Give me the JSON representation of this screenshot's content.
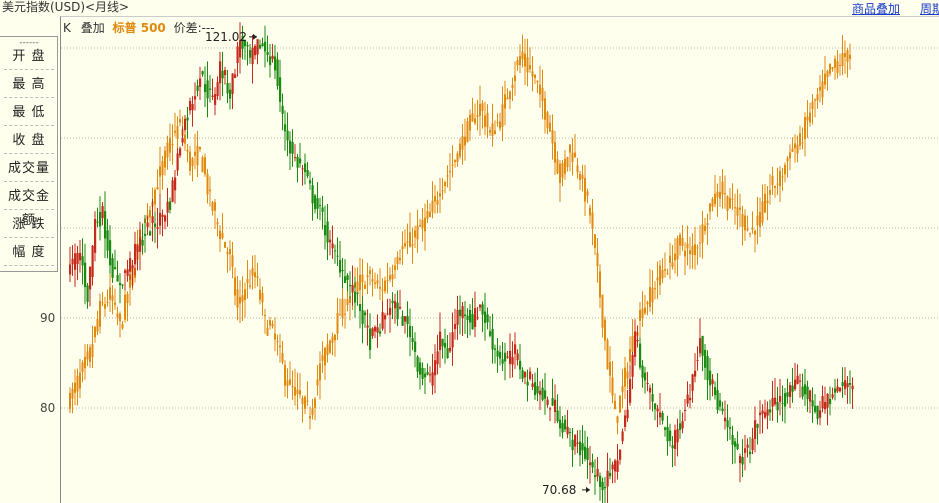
{
  "header": {
    "title": "美元指数(USD)<月线>",
    "overlay_link": "商品叠加",
    "period_link": "周期"
  },
  "subheader": {
    "k_label": "K",
    "overlay_label": "叠加",
    "overlay_index": "标普 500",
    "price_diff": "价差:---"
  },
  "side_panel": {
    "dashes": "------",
    "items": [
      "开 盘",
      "最 高",
      "最 低",
      "收 盘",
      "成交量",
      "成交金额",
      "涨 跌",
      "幅 度"
    ]
  },
  "colors": {
    "up": "#c42b1c",
    "down": "#1b8a12",
    "overlay": "#e08a12",
    "grid": "#b8b8a8",
    "background": "#ffffee"
  },
  "chart_data": {
    "type": "candlestick",
    "y_ticks": [
      80,
      90
    ],
    "y_range": [
      69,
      122
    ],
    "annotations": [
      {
        "label": "121.02",
        "value": 121.02
      },
      {
        "label": "70.68",
        "value": 70.68
      }
    ],
    "usd_index_series": {
      "name": "美元指数",
      "anchors_month_index_close": [
        [
          0,
          95.5
        ],
        [
          4,
          97.2
        ],
        [
          7,
          92.5
        ],
        [
          10,
          100.8
        ],
        [
          13,
          101.5
        ],
        [
          16,
          96.5
        ],
        [
          19,
          93.5
        ],
        [
          24,
          96.0
        ],
        [
          30,
          99.5
        ],
        [
          36,
          101.0
        ],
        [
          40,
          103.0
        ],
        [
          45,
          111.0
        ],
        [
          52,
          117.0
        ],
        [
          57,
          114.0
        ],
        [
          60,
          118.0
        ],
        [
          64,
          115.0
        ],
        [
          68,
          121.0
        ],
        [
          72,
          118.5
        ],
        [
          76,
          120.5
        ],
        [
          79,
          119.5
        ],
        [
          82,
          118.0
        ],
        [
          85,
          112.0
        ],
        [
          89,
          108.0
        ],
        [
          93,
          106.5
        ],
        [
          97,
          103.5
        ],
        [
          101,
          101.0
        ],
        [
          104,
          98.0
        ],
        [
          108,
          96.0
        ],
        [
          112,
          93.5
        ],
        [
          116,
          91.0
        ],
        [
          120,
          87.5
        ],
        [
          124,
          89.0
        ],
        [
          128,
          91.5
        ],
        [
          132,
          90.5
        ],
        [
          136,
          88.5
        ],
        [
          140,
          84.0
        ],
        [
          144,
          83.0
        ],
        [
          148,
          87.5
        ],
        [
          151,
          86.0
        ],
        [
          155,
          90.5
        ],
        [
          158,
          91.0
        ],
        [
          161,
          89.5
        ],
        [
          164,
          91.5
        ],
        [
          167,
          89.0
        ],
        [
          170,
          86.5
        ],
        [
          174,
          85.0
        ],
        [
          178,
          86.0
        ],
        [
          182,
          83.5
        ],
        [
          186,
          82.5
        ],
        [
          190,
          80.8
        ],
        [
          194,
          80.0
        ],
        [
          198,
          77.5
        ],
        [
          202,
          76.0
        ],
        [
          206,
          75.0
        ],
        [
          210,
          72.5
        ],
        [
          214,
          71.5
        ],
        [
          218,
          73.5
        ],
        [
          222,
          78.5
        ],
        [
          226,
          88.0
        ],
        [
          230,
          83.0
        ],
        [
          233,
          80.5
        ],
        [
          237,
          78.5
        ],
        [
          241,
          75.5
        ],
        [
          245,
          79.5
        ],
        [
          249,
          83.0
        ],
        [
          252,
          88.0
        ],
        [
          255,
          84.0
        ],
        [
          259,
          80.5
        ],
        [
          263,
          77.5
        ],
        [
          267,
          74.5
        ],
        [
          271,
          75.0
        ],
        [
          275,
          78.5
        ],
        [
          279,
          80.0
        ],
        [
          283,
          80.5
        ],
        [
          287,
          81.5
        ],
        [
          291,
          82.5
        ],
        [
          295,
          81.5
        ],
        [
          299,
          79.5
        ],
        [
          303,
          81.0
        ],
        [
          307,
          82.0
        ],
        [
          310,
          82.5
        ],
        [
          313,
          82.8
        ]
      ]
    },
    "sp500_overlay_series": {
      "name": "标普 500",
      "anchors_month_index_close": [
        [
          0,
          81.0
        ],
        [
          4,
          83.5
        ],
        [
          8,
          86.0
        ],
        [
          12,
          91.0
        ],
        [
          16,
          92.5
        ],
        [
          20,
          89.0
        ],
        [
          24,
          94.0
        ],
        [
          28,
          99.0
        ],
        [
          32,
          102.5
        ],
        [
          36,
          106.0
        ],
        [
          40,
          109.5
        ],
        [
          44,
          111.5
        ],
        [
          48,
          107.0
        ],
        [
          52,
          108.5
        ],
        [
          56,
          103.0
        ],
        [
          60,
          99.5
        ],
        [
          64,
          96.5
        ],
        [
          67,
          91.0
        ],
        [
          70,
          93.5
        ],
        [
          74,
          95.0
        ],
        [
          78,
          89.5
        ],
        [
          82,
          88.0
        ],
        [
          86,
          83.5
        ],
        [
          89,
          82.0
        ],
        [
          92,
          81.0
        ],
        [
          96,
          79.5
        ],
        [
          100,
          84.5
        ],
        [
          104,
          87.5
        ],
        [
          108,
          90.5
        ],
        [
          112,
          92.5
        ],
        [
          116,
          94.0
        ],
        [
          120,
          94.5
        ],
        [
          124,
          93.0
        ],
        [
          128,
          95.0
        ],
        [
          132,
          97.5
        ],
        [
          136,
          98.5
        ],
        [
          140,
          100.0
        ],
        [
          144,
          101.5
        ],
        [
          148,
          104.5
        ],
        [
          152,
          106.5
        ],
        [
          156,
          109.0
        ],
        [
          160,
          111.5
        ],
        [
          164,
          113.5
        ],
        [
          168,
          110.5
        ],
        [
          172,
          112.0
        ],
        [
          176,
          116.0
        ],
        [
          180,
          119.0
        ],
        [
          184,
          117.5
        ],
        [
          188,
          115.0
        ],
        [
          192,
          111.0
        ],
        [
          196,
          105.5
        ],
        [
          200,
          109.0
        ],
        [
          204,
          106.0
        ],
        [
          208,
          101.5
        ],
        [
          212,
          92.5
        ],
        [
          215,
          85.0
        ],
        [
          218,
          79.0
        ],
        [
          221,
          82.0
        ],
        [
          224,
          86.5
        ],
        [
          228,
          90.5
        ],
        [
          232,
          92.5
        ],
        [
          236,
          95.0
        ],
        [
          240,
          96.0
        ],
        [
          244,
          98.5
        ],
        [
          248,
          97.0
        ],
        [
          252,
          99.0
        ],
        [
          256,
          102.5
        ],
        [
          260,
          104.5
        ],
        [
          264,
          102.5
        ],
        [
          268,
          101.5
        ],
        [
          272,
          99.5
        ],
        [
          276,
          101.0
        ],
        [
          280,
          104.5
        ],
        [
          284,
          105.5
        ],
        [
          288,
          108.5
        ],
        [
          292,
          109.5
        ],
        [
          296,
          113.0
        ],
        [
          300,
          115.0
        ],
        [
          304,
          117.5
        ],
        [
          308,
          118.5
        ],
        [
          312,
          119.5
        ]
      ]
    }
  }
}
